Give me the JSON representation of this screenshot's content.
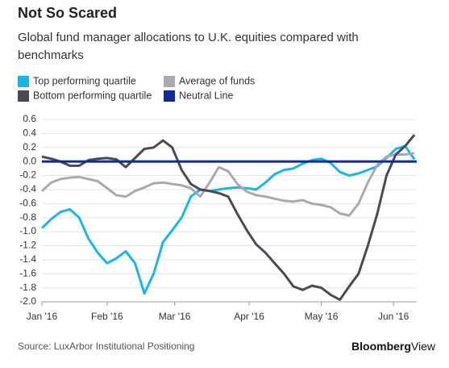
{
  "chart_data": {
    "type": "line",
    "title": "Not So Scared",
    "subtitle": "Global fund manager allocations to U.K. equities compared with benchmarks",
    "source": "Source: LuxArbor Institutional Positioning",
    "brand": [
      "Bloomberg",
      "View"
    ],
    "x": [
      0,
      4,
      8,
      12,
      16,
      20,
      24,
      28,
      32,
      36,
      40,
      44,
      48,
      52,
      56,
      60,
      64,
      68,
      72,
      76,
      80,
      84,
      88,
      92,
      96,
      100,
      104,
      108,
      112,
      116,
      120,
      124,
      128,
      132,
      136,
      140,
      144,
      148,
      152,
      156,
      160
    ],
    "xlim": [
      0,
      161
    ],
    "xticks": [
      {
        "value": 0,
        "label": "Jan '16"
      },
      {
        "value": 28,
        "label": "Feb '16"
      },
      {
        "value": 57,
        "label": "Mar '16"
      },
      {
        "value": 89,
        "label": "Apr '16"
      },
      {
        "value": 120,
        "label": "May '16"
      },
      {
        "value": 151,
        "label": "Jun '16"
      }
    ],
    "ylim": [
      -2,
      0.6
    ],
    "yticks": [
      0.6,
      0.4,
      0.2,
      {
        "value": 0,
        "label": "0.0"
      },
      -0.2,
      -0.4,
      -0.6,
      -0.8,
      {
        "value": -1,
        "label": "-1.0"
      },
      -1.2,
      -1.4,
      -1.6,
      -1.8,
      {
        "value": -2,
        "label": "-2.0"
      }
    ],
    "grid": true,
    "series": [
      {
        "name": "Top performing quartile",
        "color": "#1ab5e8",
        "values": [
          -0.95,
          -0.82,
          -0.72,
          -0.68,
          -0.8,
          -1.1,
          -1.3,
          -1.45,
          -1.38,
          -1.28,
          -1.45,
          -1.88,
          -1.6,
          -1.15,
          -0.98,
          -0.8,
          -0.5,
          -0.4,
          -0.42,
          -0.4,
          -0.38,
          -0.37,
          -0.38,
          -0.4,
          -0.3,
          -0.18,
          -0.12,
          -0.1,
          -0.03,
          0.02,
          0.04,
          -0.02,
          -0.15,
          -0.2,
          -0.17,
          -0.12,
          -0.07,
          0.05,
          0.18,
          0.22,
          0.03
        ]
      },
      {
        "name": "Average of funds",
        "color": "#aaa9b3",
        "values": [
          -0.42,
          -0.3,
          -0.25,
          -0.23,
          -0.22,
          -0.25,
          -0.28,
          -0.38,
          -0.48,
          -0.5,
          -0.42,
          -0.37,
          -0.31,
          -0.3,
          -0.32,
          -0.34,
          -0.38,
          -0.5,
          -0.3,
          -0.08,
          -0.14,
          -0.32,
          -0.43,
          -0.48,
          -0.5,
          -0.53,
          -0.56,
          -0.57,
          -0.55,
          -0.6,
          -0.62,
          -0.65,
          -0.74,
          -0.77,
          -0.6,
          -0.3,
          -0.05,
          0.07,
          0.1,
          0.1,
          0.12
        ]
      },
      {
        "name": "Bottom performing quartile",
        "color": "#4a4a55",
        "values": [
          0.07,
          0.04,
          0.0,
          -0.06,
          -0.06,
          0.02,
          0.04,
          0.05,
          0.03,
          -0.08,
          0.05,
          0.18,
          0.2,
          0.3,
          0.2,
          -0.12,
          -0.32,
          -0.4,
          -0.42,
          -0.45,
          -0.5,
          -0.75,
          -0.98,
          -1.18,
          -1.3,
          -1.45,
          -1.6,
          -1.78,
          -1.83,
          -1.77,
          -1.8,
          -1.9,
          -1.97,
          -1.78,
          -1.6,
          -1.2,
          -0.75,
          -0.2,
          0.1,
          0.22,
          0.38
        ]
      }
    ],
    "reference_lines": [
      {
        "name": "Neutral Line",
        "color": "#0f2a9e",
        "value": 0
      }
    ]
  }
}
